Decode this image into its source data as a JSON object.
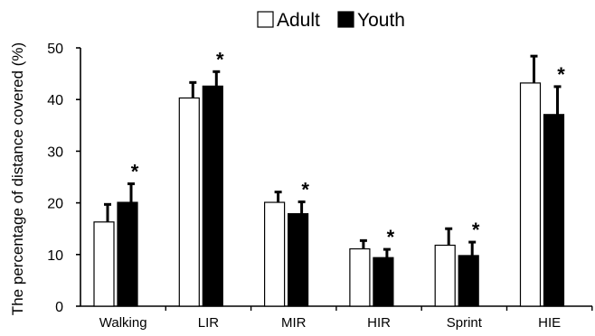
{
  "chart_data": {
    "type": "bar",
    "title": "",
    "xlabel": "",
    "ylabel": "The percentage of distance covered (%)",
    "ylim": [
      0,
      50
    ],
    "yticks": [
      "0",
      "10",
      "20",
      "30",
      "40",
      "50"
    ],
    "categories": [
      "Walking",
      "LIR",
      "MIR",
      "HIR",
      "Sprint",
      "HIE"
    ],
    "series": [
      {
        "name": "Adult",
        "color": "#ffffff",
        "values": [
          16.3,
          40.3,
          20.1,
          11.1,
          11.8,
          43.2
        ],
        "error": [
          3.4,
          3.0,
          2.0,
          1.6,
          3.2,
          5.2
        ]
      },
      {
        "name": "Youth",
        "color": "#000000",
        "values": [
          20.1,
          42.6,
          17.9,
          9.4,
          9.8,
          37.1
        ],
        "error": [
          3.6,
          2.8,
          2.3,
          1.6,
          2.6,
          5.4
        ]
      }
    ],
    "significance_marker": "*",
    "significant": [
      true,
      true,
      true,
      true,
      true,
      true
    ],
    "legend_position": "top-center",
    "grid": false
  }
}
